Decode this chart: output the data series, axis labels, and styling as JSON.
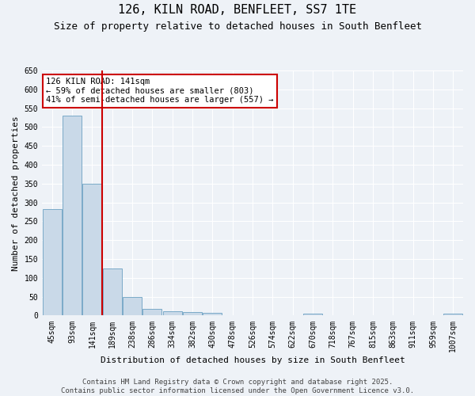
{
  "title": "126, KILN ROAD, BENFLEET, SS7 1TE",
  "subtitle": "Size of property relative to detached houses in South Benfleet",
  "xlabel": "Distribution of detached houses by size in South Benfleet",
  "ylabel": "Number of detached properties",
  "categories": [
    "45sqm",
    "93sqm",
    "141sqm",
    "189sqm",
    "238sqm",
    "286sqm",
    "334sqm",
    "382sqm",
    "430sqm",
    "478sqm",
    "526sqm",
    "574sqm",
    "622sqm",
    "670sqm",
    "718sqm",
    "767sqm",
    "815sqm",
    "863sqm",
    "911sqm",
    "959sqm",
    "1007sqm"
  ],
  "values": [
    283,
    530,
    350,
    125,
    50,
    17,
    12,
    10,
    7,
    0,
    0,
    0,
    0,
    5,
    0,
    0,
    0,
    0,
    0,
    0,
    5
  ],
  "bar_color": "#c9d9e8",
  "bar_edge_color": "#7aaac8",
  "highlight_index": 2,
  "vline_x": 2.5,
  "annotation_text": "126 KILN ROAD: 141sqm\n← 59% of detached houses are smaller (803)\n41% of semi-detached houses are larger (557) →",
  "annotation_box_color": "#ffffff",
  "annotation_box_edge_color": "#cc0000",
  "ylim": [
    0,
    650
  ],
  "yticks": [
    0,
    50,
    100,
    150,
    200,
    250,
    300,
    350,
    400,
    450,
    500,
    550,
    600,
    650
  ],
  "vline_color": "#cc0000",
  "footer": "Contains HM Land Registry data © Crown copyright and database right 2025.\nContains public sector information licensed under the Open Government Licence v3.0.",
  "background_color": "#eef2f7",
  "grid_color": "#ffffff",
  "title_fontsize": 11,
  "subtitle_fontsize": 9,
  "axis_label_fontsize": 8,
  "tick_fontsize": 7,
  "annotation_fontsize": 7.5,
  "footer_fontsize": 6.5
}
